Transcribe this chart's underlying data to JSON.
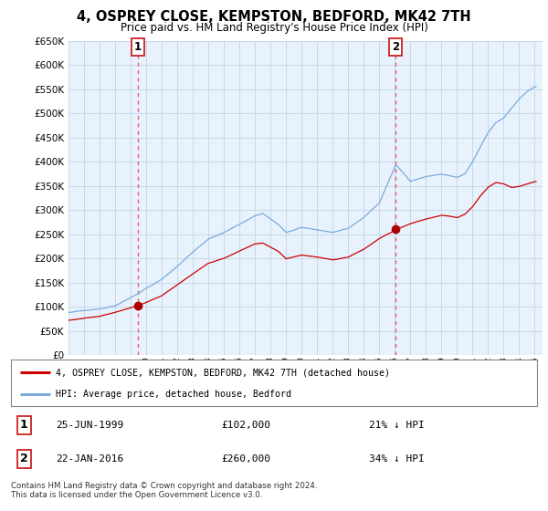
{
  "title": "4, OSPREY CLOSE, KEMPSTON, BEDFORD, MK42 7TH",
  "subtitle": "Price paid vs. HM Land Registry's House Price Index (HPI)",
  "legend_line1": "4, OSPREY CLOSE, KEMPSTON, BEDFORD, MK42 7TH (detached house)",
  "legend_line2": "HPI: Average price, detached house, Bedford",
  "sale1_date": "25-JUN-1999",
  "sale1_price": 102000,
  "sale1_note": "21% ↓ HPI",
  "sale2_date": "22-JAN-2016",
  "sale2_price": 260000,
  "sale2_note": "34% ↓ HPI",
  "copyright": "Contains HM Land Registry data © Crown copyright and database right 2024.\nThis data is licensed under the Open Government Licence v3.0.",
  "ylim": [
    0,
    650000
  ],
  "yticks": [
    0,
    50000,
    100000,
    150000,
    200000,
    250000,
    300000,
    350000,
    400000,
    450000,
    500000,
    550000,
    600000,
    650000
  ],
  "sale1_x": 1999.48,
  "sale2_x": 2016.06,
  "line_color_property": "#cc0000",
  "line_color_hpi": "#7aabdc",
  "sale_dot_color": "#aa0000",
  "dashed_line_color": "#e06060",
  "background_color": "#ffffff",
  "chart_bg_color": "#e8f2fc",
  "grid_color": "#c8d8e8",
  "xlim_left": 1995.0,
  "xlim_right": 2025.5
}
